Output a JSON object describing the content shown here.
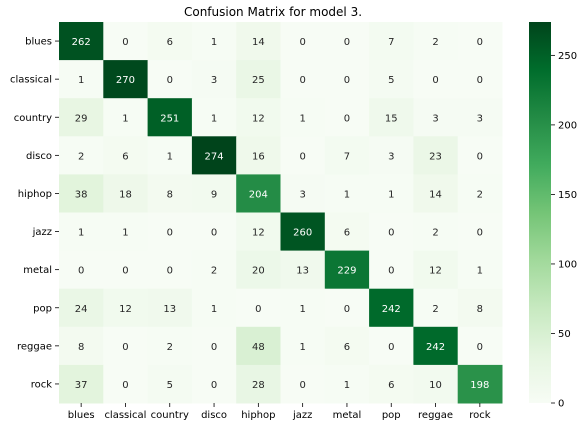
{
  "chart_data": {
    "type": "heatmap",
    "title": "Confusion Matrix for model 3.",
    "xlabel": "",
    "ylabel": "",
    "row_labels": [
      "blues",
      "classical",
      "country",
      "disco",
      "hiphop",
      "jazz",
      "metal",
      "pop",
      "reggae",
      "rock"
    ],
    "col_labels": [
      "blues",
      "classical",
      "country",
      "disco",
      "hiphop",
      "jazz",
      "metal",
      "pop",
      "reggae",
      "rock"
    ],
    "values": [
      [
        262,
        0,
        6,
        1,
        14,
        0,
        0,
        7,
        2,
        0
      ],
      [
        1,
        270,
        0,
        3,
        25,
        0,
        0,
        5,
        0,
        0
      ],
      [
        29,
        1,
        251,
        1,
        12,
        1,
        0,
        15,
        3,
        3
      ],
      [
        2,
        6,
        1,
        274,
        16,
        0,
        7,
        3,
        23,
        0
      ],
      [
        38,
        18,
        8,
        9,
        204,
        3,
        1,
        1,
        14,
        2
      ],
      [
        1,
        1,
        0,
        0,
        12,
        260,
        6,
        0,
        2,
        0
      ],
      [
        0,
        0,
        0,
        2,
        20,
        13,
        229,
        0,
        12,
        1
      ],
      [
        24,
        12,
        13,
        1,
        0,
        1,
        0,
        242,
        2,
        8
      ],
      [
        8,
        0,
        2,
        0,
        48,
        1,
        6,
        0,
        242,
        0
      ],
      [
        37,
        0,
        5,
        0,
        28,
        0,
        1,
        6,
        10,
        198
      ]
    ],
    "colorbar": {
      "range": [
        0,
        274
      ],
      "ticks": [
        0,
        50,
        100,
        150,
        200,
        250
      ],
      "colormap": "Greens",
      "color_low": "#f7fcf5",
      "color_high": "#00441b"
    },
    "grid": false,
    "legend": "colorbar-right"
  }
}
